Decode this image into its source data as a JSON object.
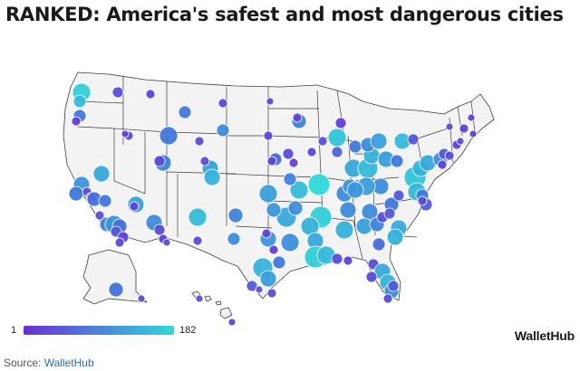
{
  "title": "RANKED: America's safest and most dangerous cities",
  "legend": {
    "min_label": "1",
    "max_label": "182",
    "color_low": "#6a2fd8",
    "color_high": "#2fd8d8"
  },
  "brand": "WalletHub",
  "source": {
    "prefix": "Source: ",
    "name": "WalletHub"
  },
  "colors": {
    "background": "#ffffff",
    "state_fill": "#f3f3f3",
    "state_border": "#3d3d3d"
  }
}
